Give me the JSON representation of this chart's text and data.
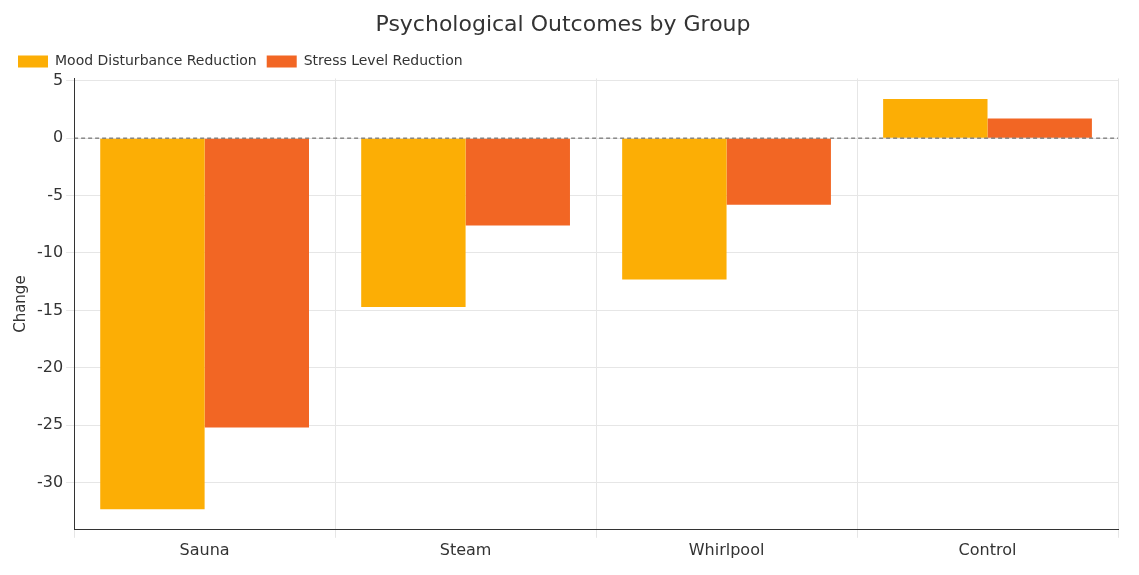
{
  "chart_data": {
    "type": "bar",
    "title": "Psychological Outcomes by Group",
    "ylabel": "Change",
    "categories": [
      "Sauna",
      "Steam",
      "Whirlpool",
      "Control"
    ],
    "series": [
      {
        "name": "Mood Disturbance Reduction",
        "color": "#fcae05",
        "values": [
          -32.3,
          -14.7,
          -12.3,
          3.4
        ]
      },
      {
        "name": "Stress Level Reduction",
        "color": "#f26624",
        "values": [
          -25.2,
          -7.6,
          -5.8,
          1.7
        ]
      }
    ],
    "ylim": [
      -34.1,
      5.2
    ],
    "yticks": [
      -30,
      -25,
      -20,
      -15,
      -10,
      -5,
      0,
      5
    ],
    "grid": true,
    "legend": "top left",
    "ref_lines": [
      {
        "axis": "y",
        "value": 0,
        "color": "#555555",
        "line_style": "dashed"
      }
    ]
  }
}
